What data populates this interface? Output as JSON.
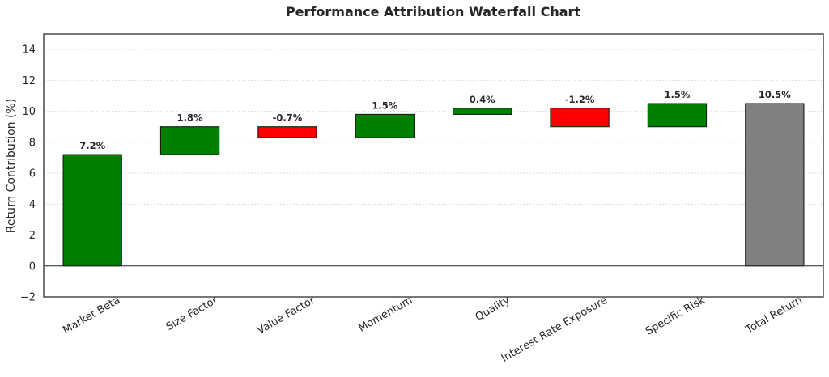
{
  "chart_data": {
    "type": "bar",
    "subtype": "waterfall",
    "title": "Performance Attribution Waterfall Chart",
    "xlabel": "",
    "ylabel": "Return Contribution (%)",
    "ylim": [
      -2,
      15
    ],
    "yticks": [
      -2,
      0,
      2,
      4,
      6,
      8,
      10,
      12,
      14
    ],
    "grid": true,
    "categories": [
      "Market Beta",
      "Size Factor",
      "Value Factor",
      "Momentum",
      "Quality",
      "Interest Rate Exposure",
      "Specific Risk",
      "Total Return"
    ],
    "values": [
      7.2,
      1.8,
      -0.7,
      1.5,
      0.4,
      -1.2,
      1.5,
      10.5
    ],
    "data_labels": [
      "7.2%",
      "1.8%",
      "-0.7%",
      "1.5%",
      "0.4%",
      "-1.2%",
      "1.5%",
      "10.5%"
    ],
    "is_total": [
      false,
      false,
      false,
      false,
      false,
      false,
      false,
      true
    ],
    "colors": {
      "positive": "#008000",
      "negative": "#ff0000",
      "total": "#808080"
    }
  }
}
